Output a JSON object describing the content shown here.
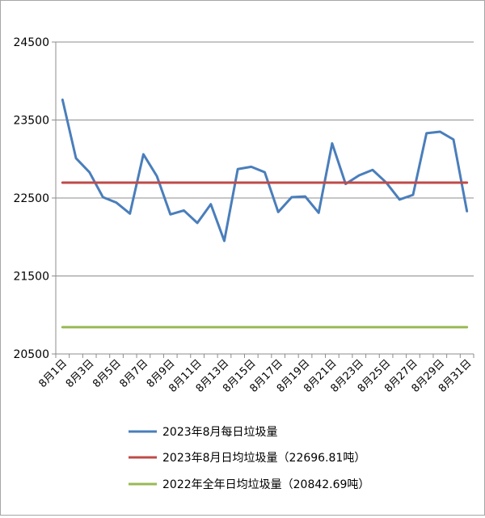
{
  "chart_data": {
    "type": "line",
    "title": "",
    "xlabel": "",
    "ylabel": "",
    "ylim": [
      20500,
      24500
    ],
    "y_ticks": [
      20500,
      21500,
      22500,
      23500,
      24500
    ],
    "grid": "horizontal",
    "legend_position": "bottom",
    "x": [
      "8月1日",
      "8月2日",
      "8月3日",
      "8月4日",
      "8月5日",
      "8月6日",
      "8月7日",
      "8月8日",
      "8月9日",
      "8月10日",
      "8月11日",
      "8月12日",
      "8月13日",
      "8月14日",
      "8月15日",
      "8月16日",
      "8月17日",
      "8月18日",
      "8月19日",
      "8月20日",
      "8月21日",
      "8月22日",
      "8月23日",
      "8月24日",
      "8月25日",
      "8月26日",
      "8月27日",
      "8月28日",
      "8月29日",
      "8月30日",
      "8月31日"
    ],
    "x_tick_labels": [
      "8月1日",
      "8月3日",
      "8月5日",
      "8月7日",
      "8月9日",
      "8月11日",
      "8月13日",
      "8月15日",
      "8月17日",
      "8月19日",
      "8月21日",
      "8月23日",
      "8月25日",
      "8月27日",
      "8月29日",
      "8月31日"
    ],
    "series": [
      {
        "name": "2023年8月每日垃圾量",
        "color": "#4a7ebb",
        "values": [
          23760,
          23010,
          22830,
          22510,
          22440,
          22300,
          23060,
          22780,
          22290,
          22340,
          22180,
          22420,
          21950,
          22870,
          22900,
          22830,
          22320,
          22510,
          22520,
          22310,
          23200,
          22680,
          22790,
          22860,
          22700,
          22480,
          22540,
          23330,
          23350,
          23250,
          22330
        ]
      },
      {
        "name": "2023年8月日均垃圾量（22696.81吨）",
        "color": "#be4b48",
        "values": [
          22696.81,
          22696.81,
          22696.81,
          22696.81,
          22696.81,
          22696.81,
          22696.81,
          22696.81,
          22696.81,
          22696.81,
          22696.81,
          22696.81,
          22696.81,
          22696.81,
          22696.81,
          22696.81,
          22696.81,
          22696.81,
          22696.81,
          22696.81,
          22696.81,
          22696.81,
          22696.81,
          22696.81,
          22696.81,
          22696.81,
          22696.81,
          22696.81,
          22696.81,
          22696.81,
          22696.81
        ]
      },
      {
        "name": "2022年全年日均垃圾量（20842.69吨）",
        "color": "#98b954",
        "values": [
          20842.69,
          20842.69,
          20842.69,
          20842.69,
          20842.69,
          20842.69,
          20842.69,
          20842.69,
          20842.69,
          20842.69,
          20842.69,
          20842.69,
          20842.69,
          20842.69,
          20842.69,
          20842.69,
          20842.69,
          20842.69,
          20842.69,
          20842.69,
          20842.69,
          20842.69,
          20842.69,
          20842.69,
          20842.69,
          20842.69,
          20842.69,
          20842.69,
          20842.69,
          20842.69,
          20842.69
        ]
      }
    ]
  }
}
